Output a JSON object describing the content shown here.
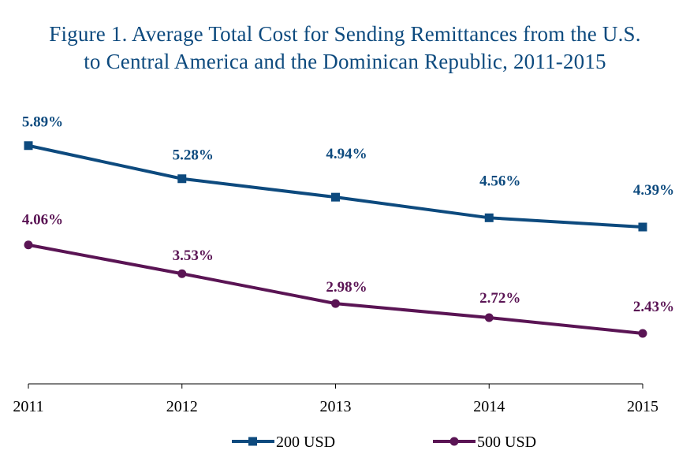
{
  "chart_data": {
    "type": "line",
    "title": [
      "Figure 1. Average Total Cost for Sending Remittances from the U.S.",
      "to Central America and the Dominican Republic, 2011-2015"
    ],
    "xlabel": "",
    "ylabel": "",
    "categories": [
      "2011",
      "2012",
      "2013",
      "2014",
      "2015"
    ],
    "ylim": [
      1.5,
      7
    ],
    "grid": false,
    "legend_position": "bottom",
    "series": [
      {
        "name": "200 USD",
        "values": [
          5.89,
          5.28,
          4.94,
          4.56,
          4.39
        ],
        "labels": [
          "5.89%",
          "5.28%",
          "4.94%",
          "4.56%",
          "4.39%"
        ],
        "color": "#0d4a7e",
        "marker": "square"
      },
      {
        "name": "500 USD",
        "values": [
          4.06,
          3.53,
          2.98,
          2.72,
          2.43
        ],
        "labels": [
          "4.06%",
          "3.53%",
          "2.98%",
          "2.72%",
          "2.43%"
        ],
        "color": "#5a1454",
        "marker": "circle"
      }
    ]
  }
}
